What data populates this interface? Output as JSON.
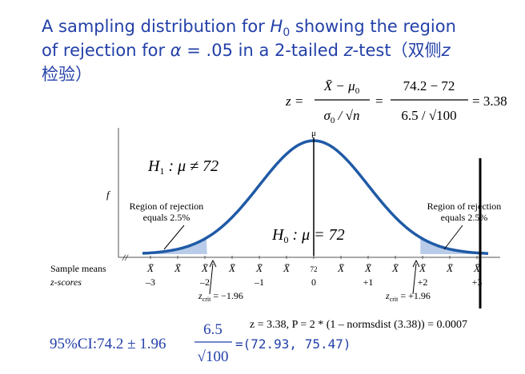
{
  "title": {
    "line1": [
      "A sampling distribution for ",
      "H",
      "0",
      " showing the region"
    ],
    "line2": [
      "of rejection for ",
      "α",
      " = .05 in a 2-tailed ",
      "z",
      "-test（双侧",
      "z"
    ],
    "line3": [
      "检验）"
    ]
  },
  "formula": {
    "lhs": "z =",
    "num1": [
      "X̄ − μ",
      "0"
    ],
    "den1": [
      "σ",
      "0",
      " / √n"
    ],
    "eq": "=",
    "num2": "74.2 − 72",
    "den2": "6.5 / √100",
    "result": "= 3.38"
  },
  "mu_label": "μ",
  "f_label": "f",
  "h1": [
    "H",
    "1",
    " : μ ≠ 72"
  ],
  "h0": [
    "H",
    "0",
    " : μ = 72"
  ],
  "rejection_left": [
    "Region of rejection",
    "equals 2.5%"
  ],
  "rejection_right": [
    "Region of rejection",
    "equals 2.5%"
  ],
  "row_labels": [
    "Sample means",
    "z-scores"
  ],
  "sample_means": [
    "X̄",
    "X̄",
    "X̄",
    "X̄",
    "X̄",
    "X̄",
    "72",
    "X̄",
    "X̄",
    "X̄",
    "X̄",
    "X̄",
    "X̄"
  ],
  "z_scores": [
    "–3",
    "–2",
    "–1",
    "0",
    "+1",
    "+2",
    "+3"
  ],
  "zcrit_left": [
    "z",
    "crit",
    " = −1.96"
  ],
  "zcrit_right": [
    "z",
    "crit",
    " = +1.96"
  ],
  "p_value": "z = 3.38, P = 2 * (1 – normsdist (3.38)) = 0.0007",
  "ci": {
    "lead": "95%CI:74.2 ± 1.96",
    "num": "6.5",
    "den": "√100",
    "result": "=(72.93, 75.47)"
  }
}
